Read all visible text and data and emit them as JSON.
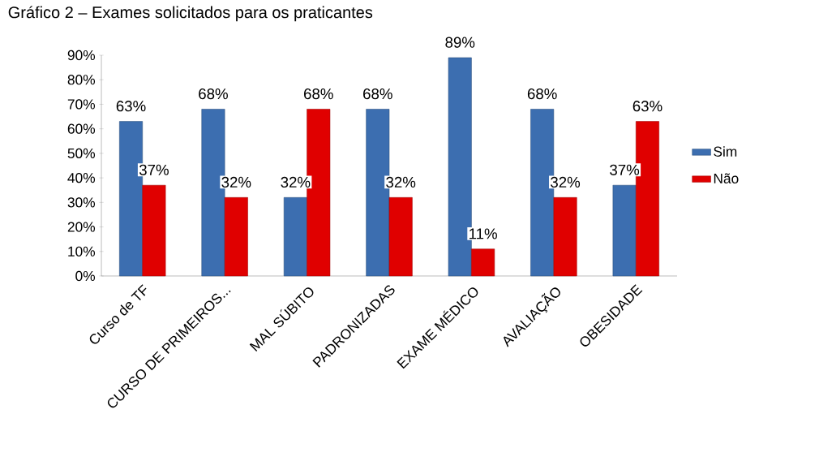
{
  "chart_data": {
    "type": "bar",
    "title": "Gráfico 2 – Exames solicitados para os praticantes",
    "categories": [
      "Curso de TF",
      "CURSO DE PRIMEIROS...",
      "MAL SÚBITO",
      "PADRONIZADAS",
      "EXAME MÉDICO",
      "AVALIAÇÃO",
      "OBESIDADE"
    ],
    "series": [
      {
        "name": "Sim",
        "color": "#3c6eb0",
        "values": [
          63,
          68,
          32,
          68,
          89,
          68,
          37
        ],
        "value_labels": [
          "63%",
          "68%",
          "32%",
          "68%",
          "89%",
          "68%",
          "37%"
        ]
      },
      {
        "name": "Não",
        "color": "#e00000",
        "values": [
          37,
          32,
          68,
          32,
          11,
          32,
          63
        ],
        "value_labels": [
          "37%",
          "32%",
          "68%",
          "32%",
          "11%",
          "32%",
          "63%"
        ]
      }
    ],
    "ylim": [
      0,
      90
    ],
    "yticks": [
      {
        "value": 0,
        "label": "0%"
      },
      {
        "value": 10,
        "label": "10%"
      },
      {
        "value": 20,
        "label": "20%"
      },
      {
        "value": 30,
        "label": "30%"
      },
      {
        "value": 40,
        "label": "40%"
      },
      {
        "value": 50,
        "label": "50%"
      },
      {
        "value": 60,
        "label": "60%"
      },
      {
        "value": 70,
        "label": "70%"
      },
      {
        "value": 80,
        "label": "80%"
      },
      {
        "value": 90,
        "label": "90%"
      }
    ],
    "legend": "right",
    "grid": false
  }
}
